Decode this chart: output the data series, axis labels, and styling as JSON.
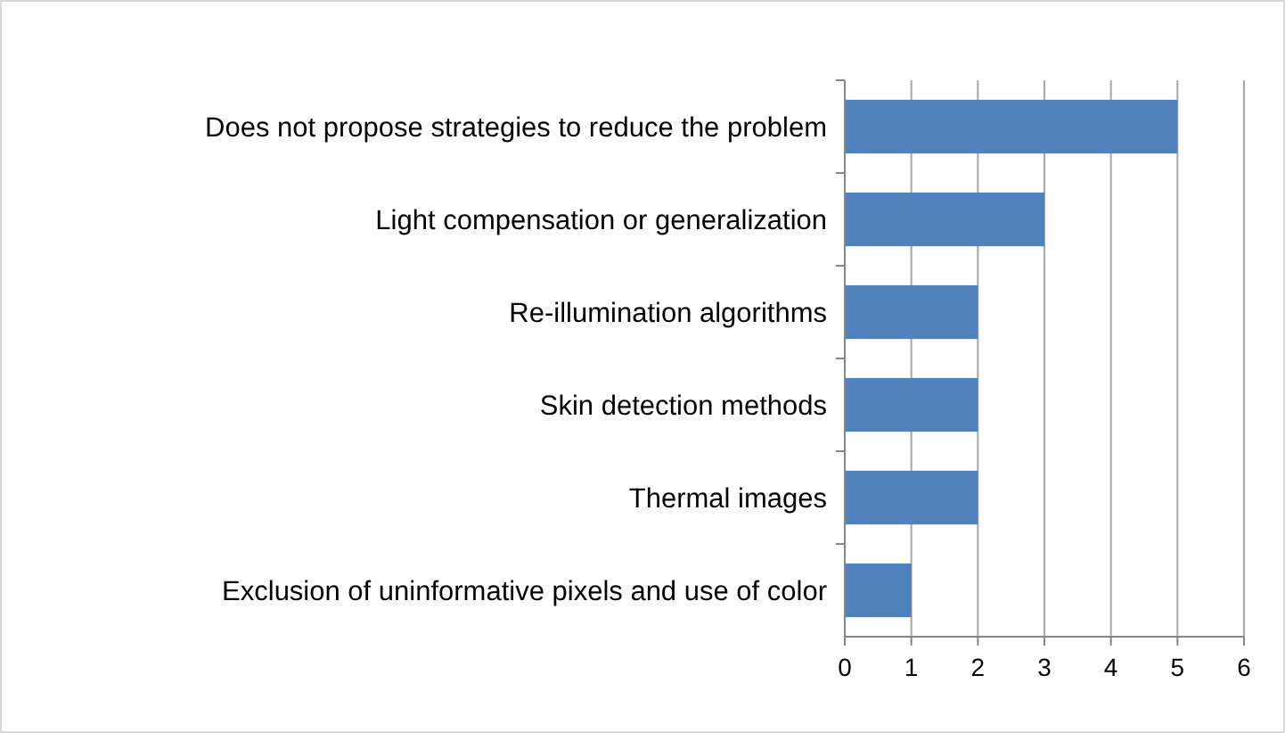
{
  "chart_data": {
    "type": "bar",
    "orientation": "horizontal",
    "categories": [
      "Does not propose strategies to reduce the problem",
      "Light compensation or generalization",
      "Re-illumination algorithms",
      "Skin detection methods",
      "Thermal images",
      "Exclusion of uninformative pixels and use of color"
    ],
    "values": [
      5,
      3,
      2,
      2,
      2,
      1
    ],
    "color": "#4f81bd",
    "xlim": [
      0,
      6
    ],
    "xticks": [
      0,
      1,
      2,
      3,
      4,
      5,
      6
    ],
    "grid": "x"
  }
}
